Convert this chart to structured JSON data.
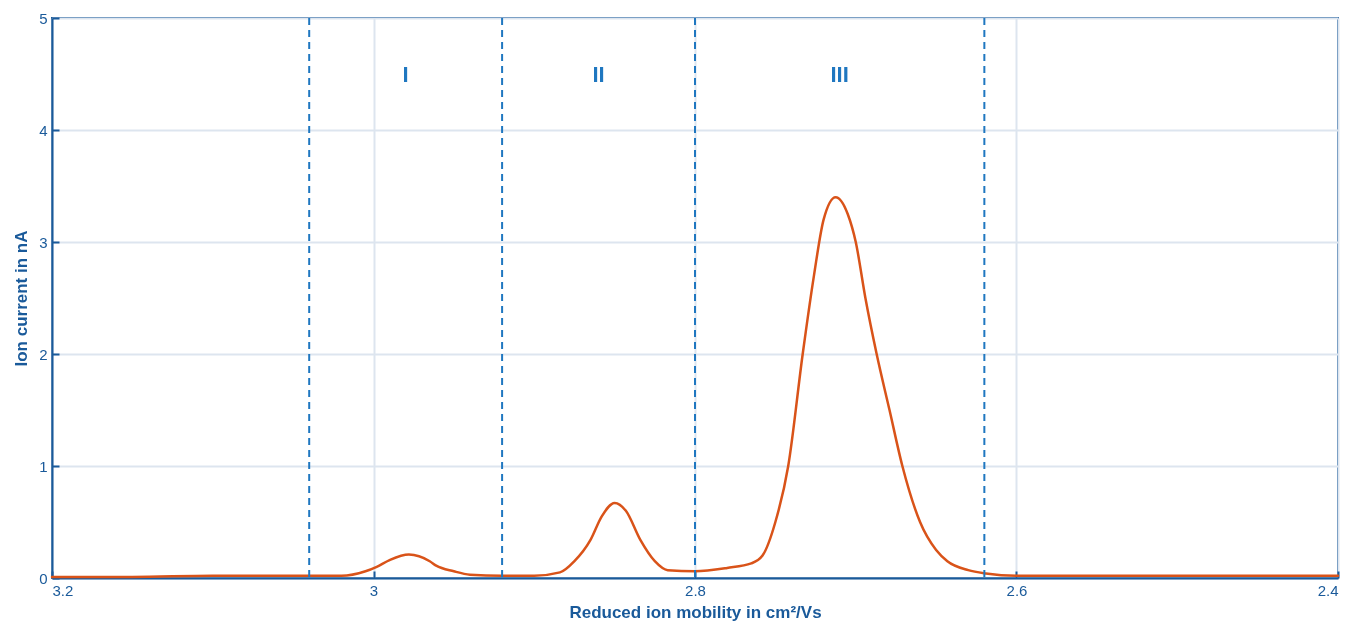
{
  "chart_data": {
    "type": "line",
    "xlabel": "Reduced ion mobility in cm²/Vs",
    "ylabel": "Ion current in nA",
    "xlim": [
      3.2,
      2.4
    ],
    "xticks": [
      3.2,
      3,
      2.8,
      2.6,
      2.4
    ],
    "ylim": [
      0,
      5
    ],
    "yticks": [
      0,
      1,
      2,
      3,
      4,
      5
    ],
    "grid": true,
    "x": [
      3.2,
      3.15,
      3.1,
      3.05,
      3.02,
      3.005,
      2.998,
      2.99,
      2.978,
      2.965,
      2.961,
      2.95,
      2.94,
      2.92,
      2.9,
      2.884,
      2.875,
      2.865,
      2.858,
      2.85,
      2.843,
      2.834,
      2.825,
      2.817,
      2.8,
      2.78,
      2.765,
      2.758,
      2.75,
      2.742,
      2.733,
      2.726,
      2.72,
      2.7125,
      2.705,
      2.7,
      2.694,
      2.687,
      2.679,
      2.671,
      2.66,
      2.65,
      2.643,
      2.63,
      2.619,
      2.6,
      2.5,
      2.45,
      2.4
    ],
    "series": [
      {
        "color": "#d95319",
        "values": [
          0.01,
          0.01,
          0.02,
          0.02,
          0.02,
          0.06,
          0.1,
          0.16,
          0.21,
          0.15,
          0.11,
          0.06,
          0.03,
          0.02,
          0.02,
          0.05,
          0.15,
          0.34,
          0.55,
          0.67,
          0.6,
          0.34,
          0.15,
          0.07,
          0.06,
          0.09,
          0.13,
          0.2,
          0.5,
          1.0,
          2.0,
          2.7,
          3.2,
          3.4,
          3.25,
          3.0,
          2.5,
          2.0,
          1.5,
          1.0,
          0.5,
          0.25,
          0.15,
          0.07,
          0.04,
          0.02,
          0.02,
          0.02,
          0.02
        ]
      }
    ],
    "ref_lines": [
      {
        "axis": "x",
        "value": 3.04,
        "color": "#1f77c0",
        "line_style": "dashed"
      },
      {
        "axis": "x",
        "value": 2.92,
        "color": "#1f77c0",
        "line_style": "dashed"
      },
      {
        "axis": "x",
        "value": 2.8,
        "color": "#1f77c0",
        "line_style": "dashed"
      },
      {
        "axis": "x",
        "value": 2.62,
        "color": "#1f77c0",
        "line_style": "dashed"
      }
    ],
    "annotations": [
      "I",
      "II",
      "III"
    ]
  }
}
